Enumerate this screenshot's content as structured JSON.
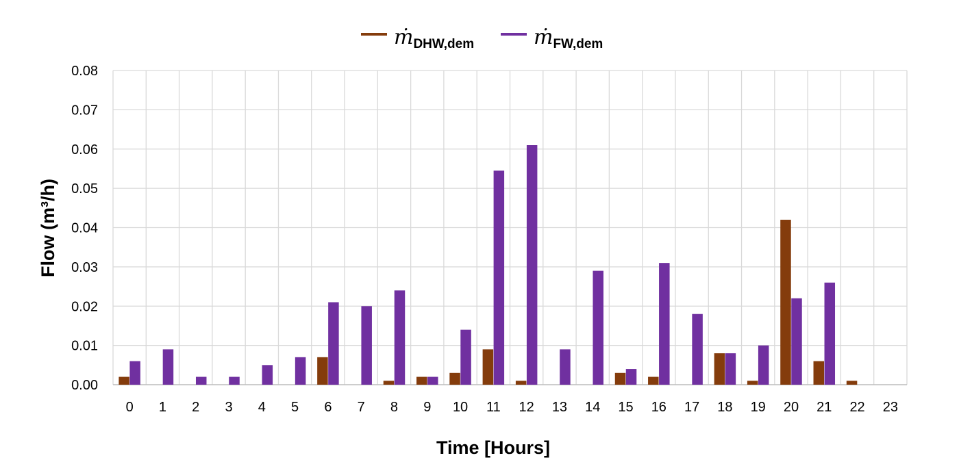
{
  "chart_data": {
    "type": "bar",
    "xlabel": "Time [Hours]",
    "ylabel": "Flow (m³/h)",
    "categories": [
      "0",
      "1",
      "2",
      "3",
      "4",
      "5",
      "6",
      "7",
      "8",
      "9",
      "10",
      "11",
      "12",
      "13",
      "14",
      "15",
      "16",
      "17",
      "18",
      "19",
      "20",
      "21",
      "22",
      "23"
    ],
    "ylim": [
      0,
      0.08
    ],
    "yticks": [
      "0.00",
      "0.01",
      "0.02",
      "0.03",
      "0.04",
      "0.05",
      "0.06",
      "0.07",
      "0.08"
    ],
    "grid": true,
    "legend_position": "top-center",
    "series": [
      {
        "name": "ṁDHW,dem",
        "symbol": "ṁ",
        "subscript": "DHW,dem",
        "color": "#843C0C",
        "values": [
          0.002,
          0,
          0,
          0,
          0,
          0,
          0.007,
          0,
          0.001,
          0.002,
          0.003,
          0.009,
          0.001,
          0,
          0,
          0.003,
          0.002,
          0,
          0.008,
          0.001,
          0.042,
          0.006,
          0.001,
          0
        ]
      },
      {
        "name": "ṁFW,dem",
        "symbol": "ṁ",
        "subscript": "FW,dem",
        "color": "#7030A0",
        "values": [
          0.006,
          0.009,
          0.002,
          0.002,
          0.005,
          0.007,
          0.021,
          0.02,
          0.024,
          0.002,
          0.014,
          0.0545,
          0.061,
          0.009,
          0.029,
          0.004,
          0.031,
          0.018,
          0.008,
          0.01,
          0.022,
          0.026,
          0,
          0
        ]
      }
    ]
  },
  "colors": {
    "grid": "#D9D9D9",
    "axis": "#BFBFBF"
  }
}
